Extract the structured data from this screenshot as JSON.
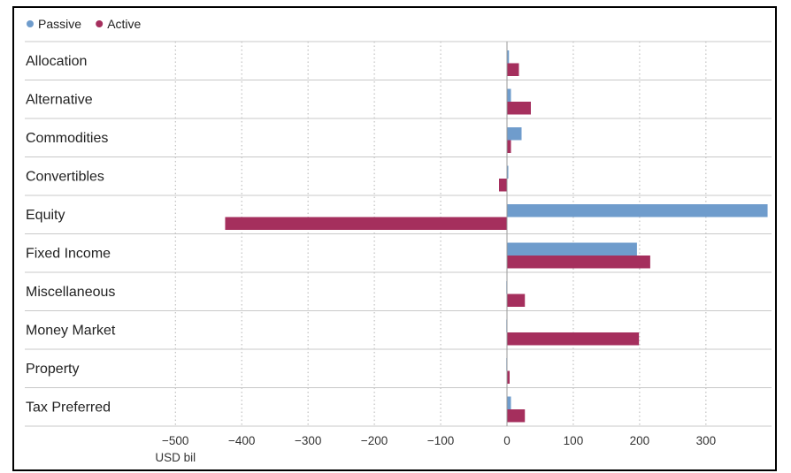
{
  "chart_data": {
    "type": "bar",
    "orientation": "horizontal",
    "categories": [
      "Allocation",
      "Alternative",
      "Commodities",
      "Convertibles",
      "Equity",
      "Fixed Income",
      "Miscellaneous",
      "Money Market",
      "Property",
      "Tax Preferred"
    ],
    "series": [
      {
        "name": "Passive",
        "color": "#6f9ccc",
        "values": [
          3,
          6,
          22,
          2,
          393,
          196,
          -1,
          -1,
          -1,
          6
        ]
      },
      {
        "name": "Active",
        "color": "#a52f5d",
        "values": [
          18,
          36,
          6,
          -12,
          -425,
          216,
          27,
          199,
          4,
          27
        ]
      }
    ],
    "xlabel": "USD bil",
    "xlim": [
      -500,
      390
    ],
    "xticks": [
      -500,
      -400,
      -300,
      -200,
      -100,
      0,
      100,
      200,
      300
    ],
    "xtick_labels": [
      "−500",
      "−400",
      "−300",
      "−200",
      "−100",
      "0",
      "100",
      "200",
      "300"
    ],
    "legend_position": "top-left",
    "grid": "vertical dotted"
  }
}
